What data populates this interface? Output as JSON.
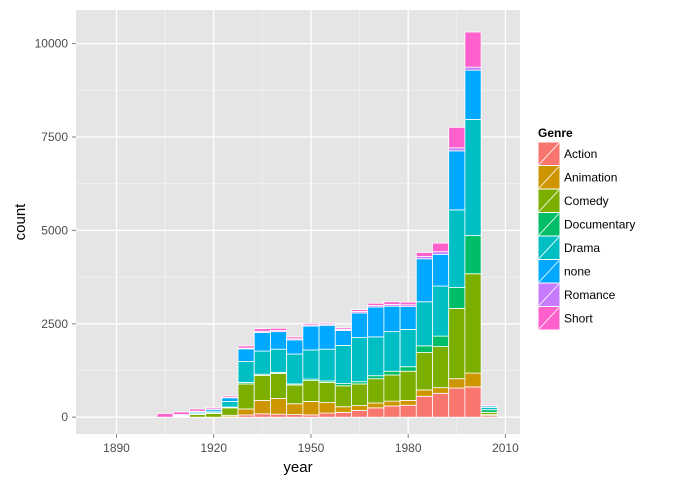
{
  "chart_data": {
    "type": "bar",
    "subtype": "stacked-histogram",
    "title": "",
    "xlabel": "year",
    "ylabel": "count",
    "xlim": [
      1877.5,
      2014.5
    ],
    "ylim": [
      -450,
      10900
    ],
    "x_ticks": [
      1890,
      1920,
      1950,
      1980,
      2010
    ],
    "y_ticks": [
      0,
      2500,
      5000,
      7500,
      10000
    ],
    "x_tick_labels": [
      "1890",
      "1920",
      "1950",
      "1980",
      "2010"
    ],
    "y_tick_labels": [
      "0",
      "2500",
      "5000",
      "7500",
      "10000"
    ],
    "bin_width": 5,
    "bins": [
      1895,
      1900,
      1905,
      1910,
      1915,
      1920,
      1925,
      1930,
      1935,
      1940,
      1945,
      1950,
      1955,
      1960,
      1965,
      1970,
      1975,
      1980,
      1985,
      1990,
      1995,
      2000,
      2005
    ],
    "legend_title": "Genre",
    "legend_position": "right",
    "series": [
      {
        "name": "Action",
        "color": "#F8766D",
        "values": [
          0,
          0,
          0,
          0,
          0,
          0,
          10,
          60,
          90,
          80,
          70,
          60,
          110,
          130,
          180,
          250,
          300,
          320,
          560,
          640,
          780,
          810,
          40
        ]
      },
      {
        "name": "Animation",
        "color": "#CD9600",
        "values": [
          0,
          0,
          0,
          0,
          0,
          0,
          40,
          160,
          360,
          420,
          290,
          360,
          280,
          150,
          130,
          130,
          130,
          130,
          170,
          150,
          250,
          370,
          30
        ]
      },
      {
        "name": "Comedy",
        "color": "#7CAE00",
        "values": [
          0,
          0,
          0,
          20,
          70,
          100,
          200,
          670,
          670,
          670,
          500,
          560,
          540,
          560,
          580,
          650,
          700,
          780,
          1000,
          1100,
          1880,
          2660,
          60
        ]
      },
      {
        "name": "Documentary",
        "color": "#00BE67",
        "values": [
          0,
          0,
          0,
          10,
          20,
          20,
          20,
          40,
          30,
          30,
          30,
          40,
          40,
          60,
          60,
          80,
          100,
          120,
          180,
          280,
          560,
          1020,
          70
        ]
      },
      {
        "name": "Drama",
        "color": "#00BFC4",
        "values": [
          0,
          0,
          0,
          20,
          30,
          40,
          150,
          560,
          620,
          620,
          800,
          780,
          850,
          1020,
          1180,
          1040,
          1060,
          1000,
          1180,
          1340,
          2080,
          3110,
          60
        ]
      },
      {
        "name": "none",
        "color": "#00A9FF",
        "values": [
          0,
          0,
          0,
          20,
          30,
          50,
          100,
          340,
          500,
          470,
          380,
          640,
          640,
          400,
          660,
          800,
          680,
          610,
          1150,
          850,
          1580,
          1320,
          40
        ]
      },
      {
        "name": "Romance",
        "color": "#C77CFF",
        "values": [
          0,
          0,
          0,
          0,
          10,
          10,
          20,
          20,
          30,
          30,
          30,
          30,
          30,
          30,
          40,
          40,
          50,
          50,
          60,
          70,
          80,
          80,
          20
        ]
      },
      {
        "name": "Short",
        "color": "#FF61CC",
        "values": [
          0,
          0,
          100,
          70,
          60,
          40,
          40,
          60,
          70,
          60,
          50,
          40,
          30,
          40,
          50,
          60,
          70,
          70,
          110,
          230,
          550,
          940,
          30
        ]
      }
    ]
  }
}
